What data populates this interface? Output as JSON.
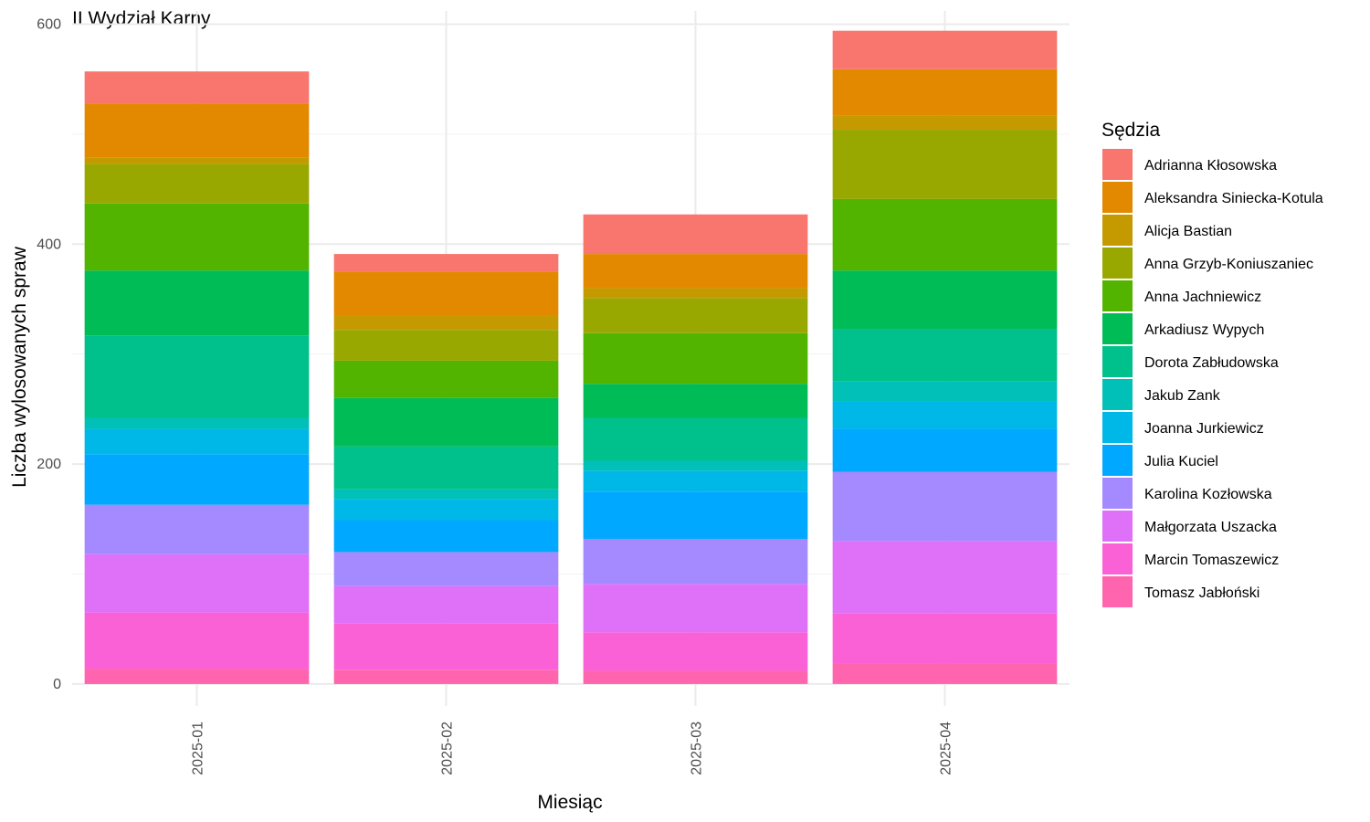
{
  "chart_data": {
    "type": "bar",
    "stacked": true,
    "title": "II Wydział Karny",
    "xlabel": "Miesiąc",
    "ylabel": "Liczba wylosowanych spraw",
    "ylim": [
      -20,
      612
    ],
    "yticks": [
      0,
      200,
      400,
      600
    ],
    "categories": [
      "2025-01",
      "2025-02",
      "2025-03",
      "2025-04"
    ],
    "legend_title": "Sędzia",
    "legend_position": "right",
    "grid": true,
    "series": [
      {
        "name": "Tomasz Jabłoński",
        "color": "#FF65AE",
        "values": [
          14,
          13,
          12,
          19
        ]
      },
      {
        "name": "Marcin Tomaszewicz",
        "color": "#FB61D7",
        "values": [
          51,
          42,
          35,
          45
        ]
      },
      {
        "name": "Małgorzata Uszacka",
        "color": "#DF70F8",
        "values": [
          53,
          34,
          44,
          66
        ]
      },
      {
        "name": "Karolina Kozłowska",
        "color": "#A58AFF",
        "values": [
          45,
          31,
          41,
          63
        ]
      },
      {
        "name": "Julia Kuciel",
        "color": "#00A9FF",
        "values": [
          46,
          29,
          43,
          39
        ]
      },
      {
        "name": "Joanna Jurkiewicz",
        "color": "#00B8E7",
        "values": [
          23,
          19,
          19,
          25
        ]
      },
      {
        "name": "Jakub Zank",
        "color": "#00C0B8",
        "values": [
          10,
          9,
          9,
          18
        ]
      },
      {
        "name": "Dorota Zabłudowska",
        "color": "#00C08B",
        "values": [
          75,
          39,
          39,
          48
        ]
      },
      {
        "name": "Arkadiusz Wypych",
        "color": "#00BC56",
        "values": [
          59,
          44,
          31,
          53
        ]
      },
      {
        "name": "Anna Jachniewicz",
        "color": "#53B400",
        "values": [
          61,
          34,
          46,
          65
        ]
      },
      {
        "name": "Anna Grzyb-Koniuszaniec",
        "color": "#99A800",
        "values": [
          36,
          28,
          32,
          63
        ]
      },
      {
        "name": "Alicja Bastian",
        "color": "#C49A00",
        "values": [
          6,
          13,
          9,
          13
        ]
      },
      {
        "name": "Aleksandra Siniecka-Kotula",
        "color": "#E38900",
        "values": [
          49,
          40,
          31,
          42
        ]
      },
      {
        "name": "Adrianna Kłosowska",
        "color": "#F8766D",
        "values": [
          29,
          16,
          36,
          35
        ]
      }
    ]
  }
}
